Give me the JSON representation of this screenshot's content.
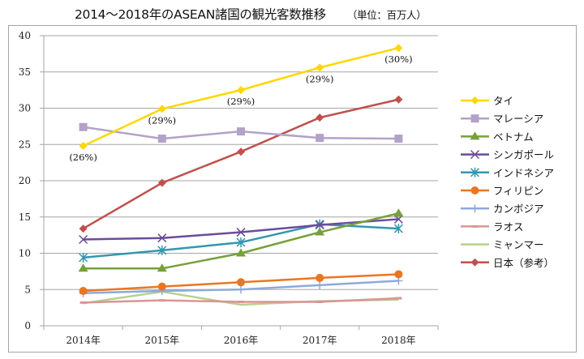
{
  "header": {
    "title": "2014～2018年のASEAN諸国の観光客数推移",
    "unit": "（単位：百万人）"
  },
  "chart_data": {
    "type": "line",
    "title": "2014～2018年のASEAN諸国の観光客数推移",
    "subtitle": "（単位：百万人）",
    "xlabel": "",
    "ylabel": "",
    "categories": [
      "2014年",
      "2015年",
      "2016年",
      "2017年",
      "2018年"
    ],
    "ylim": [
      0,
      40
    ],
    "yticks": [
      0,
      5,
      10,
      15,
      20,
      25,
      30,
      35,
      40
    ],
    "grid": true,
    "legend_position": "right",
    "series": [
      {
        "name": "タイ",
        "color": "#FFD700",
        "marker": "diamond",
        "values": [
          24.8,
          29.9,
          32.5,
          35.6,
          38.3
        ],
        "labels": [
          "(26%)",
          "(29%)",
          "(29%)",
          "(29%)",
          "(30%)"
        ]
      },
      {
        "name": "マレーシア",
        "color": "#B3A2C7",
        "marker": "square",
        "values": [
          27.4,
          25.8,
          26.8,
          25.9,
          25.8
        ]
      },
      {
        "name": "ベトナム",
        "color": "#77A03A",
        "marker": "triangle",
        "values": [
          7.9,
          7.9,
          10.0,
          12.9,
          15.5
        ]
      },
      {
        "name": "シンガポール",
        "color": "#6B4C9A",
        "marker": "x",
        "values": [
          11.9,
          12.1,
          12.9,
          13.9,
          14.7
        ]
      },
      {
        "name": "インドネシア",
        "color": "#3497B0",
        "marker": "star",
        "values": [
          9.4,
          10.4,
          11.5,
          14.0,
          13.4
        ]
      },
      {
        "name": "フィリピン",
        "color": "#E87722",
        "marker": "circle",
        "values": [
          4.8,
          5.4,
          6.0,
          6.6,
          7.1
        ]
      },
      {
        "name": "カンボジア",
        "color": "#8EA9DB",
        "marker": "plus",
        "values": [
          4.5,
          4.8,
          5.0,
          5.6,
          6.2
        ]
      },
      {
        "name": "ラオス",
        "color": "#D99594",
        "marker": "dash",
        "values": [
          3.2,
          3.5,
          3.3,
          3.3,
          3.8
        ]
      },
      {
        "name": "ミャンマー",
        "color": "#B5D18F",
        "marker": "none",
        "values": [
          3.1,
          4.7,
          2.9,
          3.4,
          3.6
        ]
      },
      {
        "name": "日本（参考）",
        "color": "#C0504D",
        "marker": "diamond",
        "values": [
          13.4,
          19.7,
          24.0,
          28.7,
          31.2
        ]
      }
    ]
  }
}
